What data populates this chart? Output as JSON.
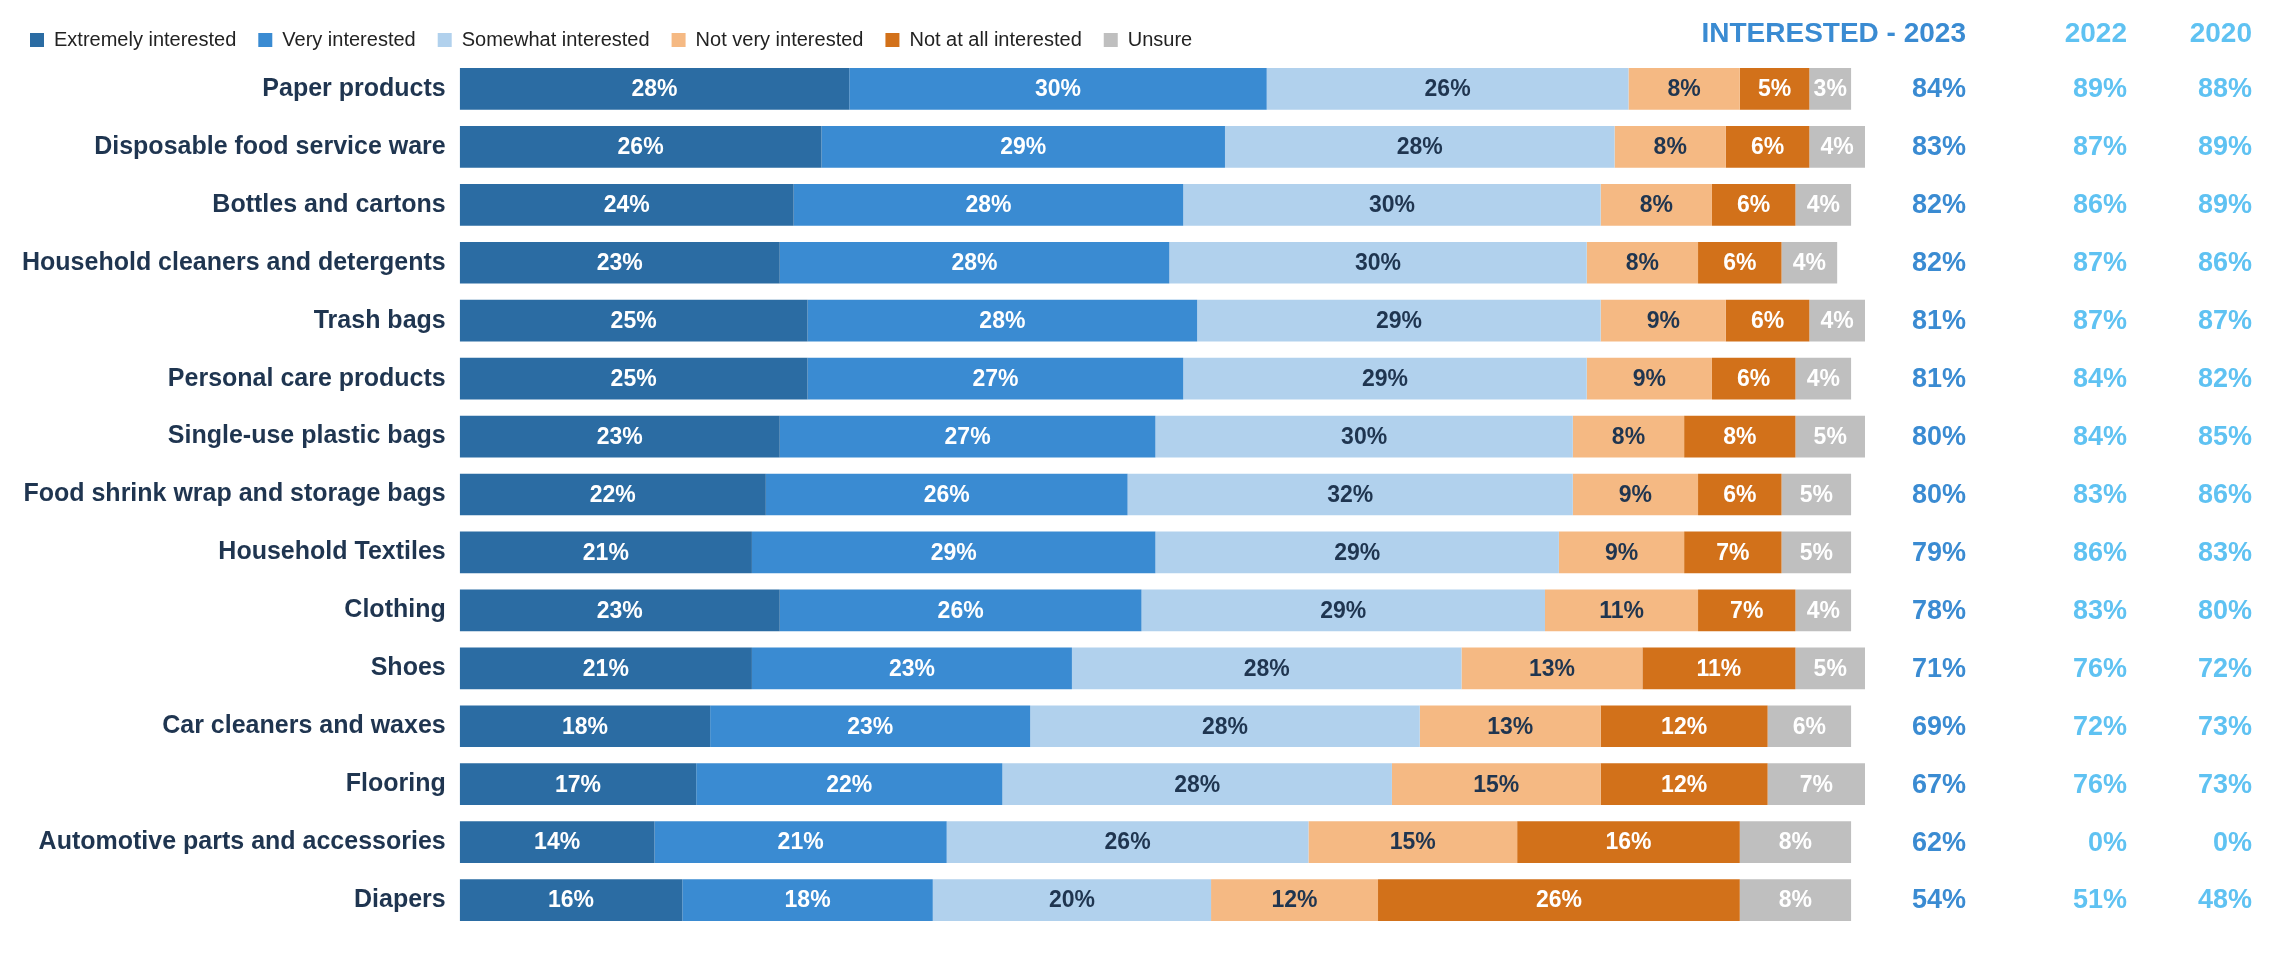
{
  "chart_data": {
    "type": "bar",
    "orientation": "horizontal",
    "stacked": true,
    "legend": "top left",
    "tick_labels": "y",
    "grid": false,
    "categories": [
      "Paper products",
      "Disposable food service ware",
      "Bottles and cartons",
      "Household cleaners and detergents",
      "Trash bags",
      "Personal care products",
      "Single-use plastic bags",
      "Food shrink wrap and storage bags",
      "Household Textiles",
      "Clothing",
      "Shoes",
      "Car cleaners and waxes",
      "Flooring",
      "Automotive parts and accessories",
      "Diapers"
    ],
    "series": [
      {
        "name": "Extremely interested",
        "color": "#2b6ca3",
        "values": [
          28,
          26,
          24,
          23,
          25,
          25,
          23,
          22,
          21,
          23,
          21,
          18,
          17,
          14,
          16
        ],
        "value_labels": [
          "28%",
          "26%",
          "24%",
          "23%",
          "25%",
          "25%",
          "23%",
          "22%",
          "21%",
          "23%",
          "21%",
          "18%",
          "17%",
          "14%",
          "16%"
        ]
      },
      {
        "name": "Very interested",
        "color": "#3a8bd2",
        "values": [
          30,
          29,
          28,
          28,
          28,
          27,
          27,
          26,
          29,
          26,
          23,
          23,
          22,
          21,
          18
        ],
        "value_labels": [
          "30%",
          "29%",
          "28%",
          "28%",
          "28%",
          "27%",
          "27%",
          "26%",
          "29%",
          "26%",
          "23%",
          "23%",
          "22%",
          "21%",
          "18%"
        ]
      },
      {
        "name": "Somewhat interested",
        "color": "#b1d1ed",
        "values": [
          26,
          28,
          30,
          30,
          29,
          29,
          30,
          32,
          29,
          29,
          28,
          28,
          28,
          26,
          20
        ],
        "value_labels": [
          "26%",
          "28%",
          "30%",
          "30%",
          "29%",
          "29%",
          "30%",
          "32%",
          "29%",
          "29%",
          "28%",
          "28%",
          "28%",
          "26%",
          "20%"
        ]
      },
      {
        "name": "Not very interested",
        "color": "#f5b983",
        "values": [
          8,
          8,
          8,
          8,
          9,
          9,
          8,
          9,
          9,
          11,
          13,
          13,
          15,
          15,
          12
        ],
        "value_labels": [
          "8%",
          "8%",
          "8%",
          "8%",
          "9%",
          "9%",
          "8%",
          "9%",
          "9%",
          "11%",
          "13%",
          "13%",
          "15%",
          "15%",
          "12%"
        ]
      },
      {
        "name": "Not at all interested",
        "color": "#d2711a",
        "values": [
          5,
          6,
          6,
          6,
          6,
          6,
          8,
          6,
          7,
          7,
          11,
          12,
          12,
          16,
          26
        ],
        "value_labels": [
          "5%",
          "6%",
          "6%",
          "6%",
          "6%",
          "6%",
          "8%",
          "6%",
          "7%",
          "7%",
          "11%",
          "12%",
          "12%",
          "16%",
          "26%"
        ]
      },
      {
        "name": "Unsure",
        "color": "#bfbfbf",
        "values": [
          3,
          4,
          4,
          4,
          4,
          4,
          5,
          5,
          5,
          4,
          5,
          6,
          7,
          8,
          8
        ],
        "value_labels": [
          "3%",
          "4%",
          "4%",
          "4%",
          "4%",
          "4%",
          "5%",
          "5%",
          "5%",
          "4%",
          "5%",
          "6%",
          "7%",
          "8%",
          "8%"
        ]
      }
    ],
    "annotations": [
      "INTERESTED - 2023",
      "2022",
      "2020",
      "84%",
      "89%",
      "88%",
      "83%",
      "87%",
      "89%",
      "82%",
      "86%",
      "89%",
      "82%",
      "87%",
      "86%",
      "81%",
      "87%",
      "87%",
      "81%",
      "84%",
      "82%",
      "80%",
      "84%",
      "85%",
      "80%",
      "83%",
      "86%",
      "79%",
      "86%",
      "83%",
      "78%",
      "83%",
      "80%",
      "71%",
      "76%",
      "72%",
      "69%",
      "72%",
      "73%",
      "67%",
      "76%",
      "73%",
      "62%",
      "0%",
      "0%",
      "54%",
      "51%",
      "48%"
    ]
  }
}
